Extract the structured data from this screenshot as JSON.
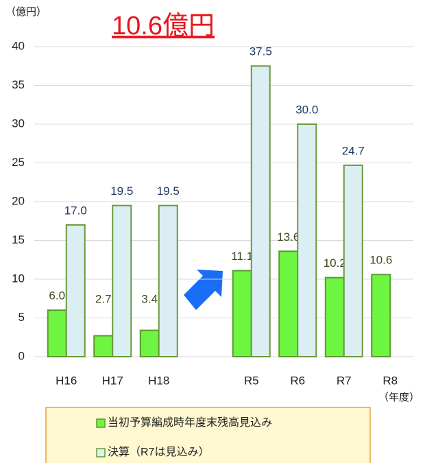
{
  "chart_data": {
    "type": "bar",
    "annotation": "10.6億円",
    "ylabel": "（億円）",
    "xlabel": "（年度）",
    "categories": [
      "H16",
      "H17",
      "H18",
      null,
      "R5",
      "R6",
      "R7",
      "R8"
    ],
    "series": [
      {
        "name": "当初予算編成時年度末残高見込み",
        "color": "#6ef542",
        "stroke": "#5b9a2e",
        "values": [
          6.0,
          2.7,
          3.4,
          null,
          11.1,
          13.6,
          10.2,
          10.6
        ],
        "value_labels": [
          "6.0",
          "2.7",
          "3.4",
          null,
          "11.1",
          "13.6",
          "10.2",
          "10.6"
        ]
      },
      {
        "name": "決算（R7は見込み）",
        "color": "#dbeef4",
        "stroke": "#6a9a3a",
        "values": [
          17.0,
          19.5,
          19.5,
          null,
          37.5,
          30.0,
          24.7,
          null
        ],
        "value_labels": [
          "17.0",
          "19.5",
          "19.5",
          null,
          "37.5",
          "30.0",
          "24.7",
          null
        ]
      }
    ],
    "ylim": [
      0,
      40
    ],
    "yticks": [
      0,
      5,
      10,
      15,
      20,
      25,
      30,
      35,
      40
    ],
    "grid": true
  }
}
